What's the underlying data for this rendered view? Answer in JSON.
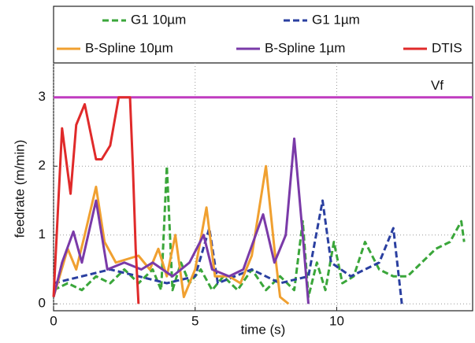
{
  "chart_data": {
    "type": "line",
    "xlabel": "time (s)",
    "ylabel": "feedrate (m/min)",
    "xlim": [
      0,
      14.8
    ],
    "ylim": [
      -0.1,
      3.5
    ],
    "xticks": [
      0,
      5,
      10
    ],
    "yticks": [
      0,
      1,
      2,
      3
    ],
    "grid": true,
    "reference_line": {
      "value": 3,
      "label": "Vf",
      "color": "#c03cc0"
    },
    "series": [
      {
        "name": "G1 10µm",
        "color": "#3aa63a",
        "dash": true,
        "x": [
          0,
          0.5,
          1,
          1.5,
          2,
          2.5,
          3,
          3.5,
          3.8,
          4.0,
          4.2,
          4.5,
          4.8,
          5.2,
          5.6,
          6.0,
          6.5,
          7.0,
          7.5,
          8.0,
          8.5,
          8.8,
          9.0,
          9.3,
          9.6,
          9.9,
          10.2,
          10.6,
          11.0,
          11.5,
          12.0,
          12.5,
          13.0,
          13.5,
          14.0,
          14.4,
          14.5
        ],
        "values": [
          0.2,
          0.3,
          0.2,
          0.4,
          0.3,
          0.5,
          0.3,
          0.5,
          0.2,
          2.0,
          0.2,
          0.6,
          0.3,
          0.5,
          0.2,
          0.4,
          0.2,
          0.5,
          0.2,
          0.4,
          0.2,
          1.2,
          0.1,
          0.6,
          0.2,
          0.9,
          0.3,
          0.4,
          0.9,
          0.5,
          0.4,
          0.4,
          0.6,
          0.8,
          0.9,
          1.2,
          0.9
        ]
      },
      {
        "name": "G1 1µm",
        "color": "#2a3fa0",
        "dash": true,
        "x": [
          0,
          1.0,
          2.0,
          3.0,
          4.0,
          5.0,
          5.5,
          5.8,
          7.0,
          8.0,
          9.0,
          9.5,
          9.8,
          10.5,
          11.5,
          12.0,
          12.3
        ],
        "values": [
          0.3,
          0.4,
          0.5,
          0.4,
          0.3,
          0.4,
          1.1,
          0.3,
          0.5,
          0.3,
          0.4,
          1.5,
          0.6,
          0.4,
          0.6,
          1.1,
          0.0
        ]
      },
      {
        "name": "B-Spline 10µm",
        "color": "#f0a030",
        "dash": false,
        "x": [
          0,
          0.5,
          0.8,
          1.1,
          1.5,
          1.8,
          2.2,
          3.0,
          3.4,
          3.7,
          4.0,
          4.3,
          4.6,
          5.0,
          5.4,
          5.7,
          6.2,
          6.6,
          7.0,
          7.5,
          7.8,
          8.0,
          8.3
        ],
        "values": [
          0.1,
          0.8,
          0.5,
          1.0,
          1.7,
          0.9,
          0.6,
          0.7,
          0.5,
          0.8,
          0.4,
          1.0,
          0.1,
          0.5,
          1.4,
          0.4,
          0.4,
          0.3,
          0.7,
          2.0,
          0.8,
          0.1,
          0.0
        ]
      },
      {
        "name": "B-Spline 1µm",
        "color": "#7a3aa8",
        "dash": false,
        "x": [
          0,
          0.3,
          0.7,
          1.0,
          1.5,
          1.9,
          2.5,
          3.1,
          3.5,
          4.2,
          4.8,
          5.3,
          5.6,
          6.2,
          6.7,
          7.4,
          7.8,
          8.2,
          8.5,
          8.8,
          9.0
        ],
        "values": [
          0.1,
          0.6,
          1.05,
          0.6,
          1.5,
          0.5,
          0.6,
          0.5,
          0.6,
          0.4,
          0.6,
          1.0,
          0.5,
          0.4,
          0.5,
          1.3,
          0.6,
          1.0,
          2.4,
          1.0,
          0.0
        ]
      },
      {
        "name": "DTIS",
        "color": "#e02a2a",
        "dash": false,
        "x": [
          0,
          0.3,
          0.6,
          0.8,
          1.1,
          1.5,
          1.7,
          2.0,
          2.3,
          2.7,
          2.8,
          2.9,
          3.0
        ],
        "values": [
          0.1,
          2.55,
          1.6,
          2.6,
          2.9,
          2.1,
          2.1,
          2.3,
          3.0,
          3.0,
          2.0,
          0.8,
          0.0
        ]
      }
    ]
  }
}
